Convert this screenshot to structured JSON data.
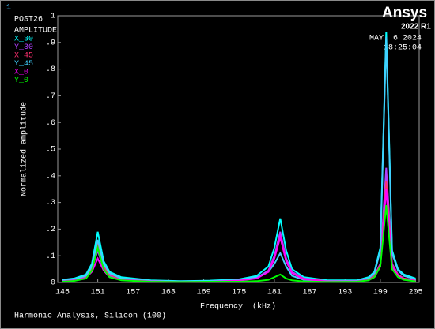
{
  "chart_data": {
    "type": "line",
    "window_number": "1",
    "program": "POST26",
    "legend_title": "AMPLITUDE",
    "brand": "Ansys",
    "version": "2022 R1",
    "date": "MAY  6 2024",
    "time": "18:25:04",
    "title": "Harmonic Analysis, Silicon (100)",
    "xlabel": "Frequency  (kHz)",
    "ylabel": "Normalized amplitude",
    "x": [
      145,
      147,
      149,
      150,
      151,
      152,
      153,
      155,
      160,
      165,
      170,
      175,
      178,
      180,
      181,
      182,
      183,
      184,
      186,
      190,
      195,
      197,
      198,
      199,
      200,
      201,
      202,
      203,
      205
    ],
    "series": [
      {
        "name": "X_30",
        "color": "#00ffff",
        "values": [
          0.01,
          0.015,
          0.03,
          0.07,
          0.19,
          0.08,
          0.04,
          0.02,
          0.008,
          0.005,
          0.007,
          0.012,
          0.025,
          0.06,
          0.13,
          0.24,
          0.12,
          0.05,
          0.02,
          0.008,
          0.008,
          0.02,
          0.04,
          0.13,
          0.94,
          0.12,
          0.05,
          0.03,
          0.015
        ]
      },
      {
        "name": "Y_30",
        "color": "#b040ff",
        "values": [
          0.005,
          0.01,
          0.02,
          0.05,
          0.12,
          0.05,
          0.025,
          0.012,
          0.005,
          0.003,
          0.004,
          0.008,
          0.018,
          0.045,
          0.1,
          0.19,
          0.09,
          0.04,
          0.015,
          0.005,
          0.005,
          0.012,
          0.025,
          0.07,
          0.43,
          0.07,
          0.03,
          0.015,
          0.008
        ]
      },
      {
        "name": "X_45",
        "color": "#ff3070",
        "values": [
          0.006,
          0.01,
          0.022,
          0.055,
          0.14,
          0.06,
          0.03,
          0.013,
          0.006,
          0.003,
          0.004,
          0.008,
          0.016,
          0.04,
          0.09,
          0.17,
          0.08,
          0.035,
          0.013,
          0.005,
          0.005,
          0.012,
          0.024,
          0.065,
          0.38,
          0.065,
          0.028,
          0.015,
          0.008
        ]
      },
      {
        "name": "Y_45",
        "color": "#40d0ff",
        "values": [
          0.008,
          0.012,
          0.025,
          0.06,
          0.16,
          0.07,
          0.035,
          0.015,
          0.006,
          0.004,
          0.005,
          0.01,
          0.02,
          0.04,
          0.07,
          0.11,
          0.06,
          0.025,
          0.01,
          0.005,
          0.006,
          0.016,
          0.035,
          0.12,
          0.92,
          0.11,
          0.045,
          0.025,
          0.012
        ]
      },
      {
        "name": "X_0",
        "color": "#ff00ff",
        "values": [
          0.004,
          0.008,
          0.018,
          0.04,
          0.09,
          0.045,
          0.02,
          0.01,
          0.004,
          0.002,
          0.003,
          0.007,
          0.015,
          0.04,
          0.09,
          0.17,
          0.08,
          0.035,
          0.012,
          0.004,
          0.004,
          0.01,
          0.02,
          0.06,
          0.35,
          0.06,
          0.025,
          0.012,
          0.006
        ]
      },
      {
        "name": "Y_0",
        "color": "#00ff00",
        "values": [
          0.003,
          0.006,
          0.015,
          0.045,
          0.13,
          0.05,
          0.02,
          0.008,
          0.003,
          0.002,
          0.003,
          0.003,
          0.005,
          0.01,
          0.02,
          0.03,
          0.015,
          0.008,
          0.004,
          0.002,
          0.003,
          0.008,
          0.02,
          0.06,
          0.29,
          0.05,
          0.02,
          0.01,
          0.004
        ]
      }
    ],
    "xlim": [
      144.2,
      205.6
    ],
    "ylim": [
      0,
      1
    ],
    "xticks": [
      145,
      151,
      157,
      163,
      169,
      175,
      181,
      187,
      193,
      199,
      205
    ],
    "yticks": [
      0,
      {
        "value": 0.1,
        "label": ".1"
      },
      {
        "value": 0.2,
        "label": ".2"
      },
      {
        "value": 0.3,
        "label": ".3"
      },
      {
        "value": 0.4,
        "label": ".4"
      },
      {
        "value": 0.5,
        "label": ".5"
      },
      {
        "value": 0.6,
        "label": ".6"
      },
      {
        "value": 0.7,
        "label": ".7"
      },
      {
        "value": 0.8,
        "label": ".8"
      },
      {
        "value": 0.9,
        "label": ".9"
      },
      1
    ],
    "grid": false
  }
}
